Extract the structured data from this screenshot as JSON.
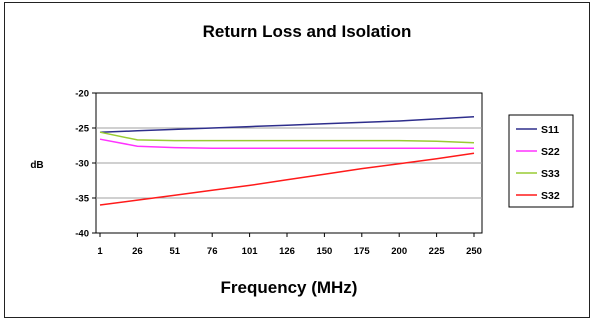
{
  "chart_data": {
    "type": "line",
    "title": "Return Loss and Isolation",
    "xlabel": "Frequency (MHz)",
    "ylabel": "dB",
    "x_ticks": [
      "1",
      "26",
      "51",
      "76",
      "101",
      "126",
      "150",
      "175",
      "200",
      "225",
      "250"
    ],
    "ylim": [
      -40,
      -20
    ],
    "y_ticks": [
      -20,
      -25,
      -30,
      -35,
      -40
    ],
    "grid": true,
    "legend_position": "right",
    "x": [
      1,
      26,
      51,
      76,
      101,
      126,
      150,
      175,
      200,
      225,
      250
    ],
    "series": [
      {
        "name": "S11",
        "color": "#2e2e8c",
        "values": [
          -25.6,
          -25.4,
          -25.2,
          -25.0,
          -24.8,
          -24.6,
          -24.4,
          -24.2,
          -24.0,
          -23.7,
          -23.4
        ]
      },
      {
        "name": "S22",
        "color": "#ff33ff",
        "values": [
          -26.6,
          -27.6,
          -27.8,
          -27.9,
          -27.9,
          -27.9,
          -27.9,
          -27.9,
          -27.9,
          -27.9,
          -27.9
        ]
      },
      {
        "name": "S33",
        "color": "#99cc33",
        "values": [
          -25.6,
          -26.7,
          -26.8,
          -26.8,
          -26.8,
          -26.8,
          -26.8,
          -26.8,
          -26.8,
          -26.9,
          -27.1
        ]
      },
      {
        "name": "S32",
        "color": "#ff1a1a",
        "values": [
          -36.0,
          -35.3,
          -34.6,
          -33.9,
          -33.2,
          -32.4,
          -31.6,
          -30.8,
          -30.1,
          -29.4,
          -28.6
        ]
      }
    ]
  }
}
